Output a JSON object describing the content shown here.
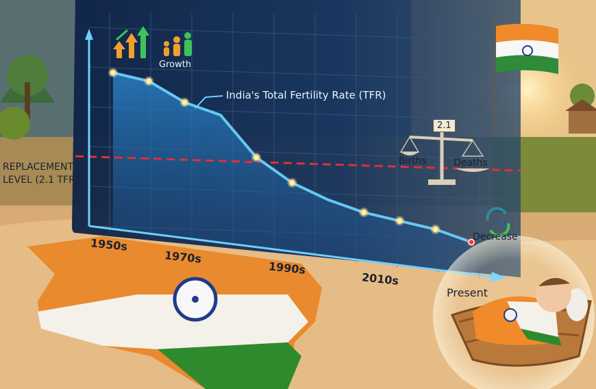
{
  "chart_data": {
    "type": "line",
    "title": "India's Total Fertility Rate (TFR)",
    "x_ticks": [
      "1950s",
      "1970s",
      "1990s",
      "2010s",
      "Present"
    ],
    "series": [
      {
        "name": "India's Total Fertility Rate (TFR)",
        "x": [
          0,
          1,
          2,
          3,
          4,
          5,
          6,
          7,
          8,
          9,
          10
        ],
        "values": [
          5.9,
          5.7,
          5.2,
          4.9,
          3.9,
          3.3,
          2.9,
          2.6,
          2.4,
          2.2,
          1.9
        ]
      }
    ],
    "reference_line": {
      "label_line1": "REPLACEMENT",
      "label_line2": "LEVEL (2.1 TFR)",
      "value": 2.1
    },
    "grid": true,
    "legend": "none"
  },
  "annotations": {
    "growth": "Growth",
    "births": "Births",
    "deaths": "Deaths",
    "scale_value": "2.1",
    "decrease": "Decrease"
  },
  "colors": {
    "panel": "#102a4c",
    "line": "#66c8f2",
    "fill": "#1f6aa8",
    "replacement_line": "#e0303a",
    "point": "#fff2b0",
    "last_point": "#e83a3a",
    "growth_arrows": "#f0a030",
    "growth_arrows_green": "#3cc45a"
  },
  "icons": [
    "growth-arrows-icon",
    "family-icon",
    "balance-scale-icon",
    "decrease-cycle-icon",
    "india-flag-icon",
    "baby-basket-icon"
  ]
}
